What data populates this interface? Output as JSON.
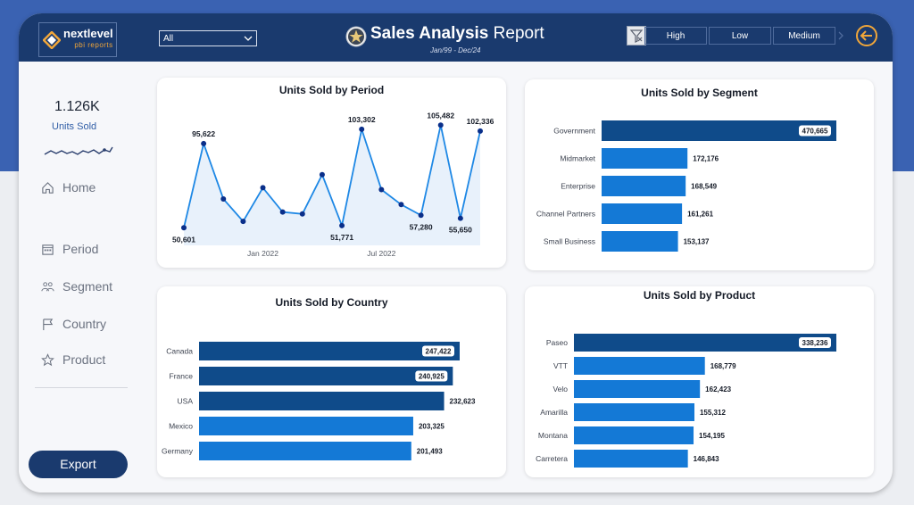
{
  "header": {
    "logo_line1": "nextlevel",
    "logo_line2": "pbi reports",
    "dropdown_value": "All",
    "title_bold": "Sales Analysis",
    "title_rest": " Report",
    "subtitle": "Jan/99 - Dec/24",
    "segments": [
      "High",
      "Low",
      "Medium"
    ]
  },
  "sidebar": {
    "kpi_value": "1.126K",
    "kpi_label": "Units Sold",
    "nav": [
      {
        "label": "Home",
        "icon": "home-icon"
      },
      {
        "label": "Period",
        "icon": "calendar-icon"
      },
      {
        "label": "Segment",
        "icon": "people-icon"
      },
      {
        "label": "Country",
        "icon": "flag-icon"
      },
      {
        "label": "Product",
        "icon": "star-outline-icon"
      }
    ],
    "export_label": "Export"
  },
  "colors": {
    "header": "#1a3a6e",
    "bar_dark": "#0f4b8a",
    "bar_light": "#1479d6",
    "line": "#1e88e5",
    "point": "#0a2f8a",
    "accent": "#f0a63a"
  },
  "chart_data": [
    {
      "type": "line",
      "title": "Units Sold by Period",
      "x": [
        "2021-09",
        "2021-10",
        "2021-11",
        "2021-12",
        "2022-01",
        "2022-02",
        "2022-03",
        "2022-04",
        "2022-05",
        "2022-06",
        "2022-07",
        "2022-08",
        "2022-09",
        "2022-10",
        "2022-11",
        "2022-12"
      ],
      "values": [
        50601,
        95622,
        66000,
        54000,
        72000,
        59000,
        58000,
        79000,
        51771,
        103302,
        71000,
        63000,
        57280,
        105482,
        55650,
        102336
      ],
      "labeled_points": {
        "2021-09": "50,601",
        "2021-10": "95,622",
        "2022-05": "51,771",
        "2022-06": "103,302",
        "2022-09": "57,280",
        "2022-10": "105,482",
        "2022-11": "55,650",
        "2022-12": "102,336"
      },
      "x_ticks": [
        "Jan 2022",
        "Jul 2022"
      ]
    },
    {
      "type": "bar",
      "title": "Units Sold by Segment",
      "categories": [
        "Government",
        "Midmarket",
        "Enterprise",
        "Channel Partners",
        "Small Business"
      ],
      "values": [
        470665,
        172176,
        168549,
        161261,
        153137
      ],
      "labels": [
        "470,665",
        "172,176",
        "168,549",
        "161,261",
        "153,137"
      ],
      "dark_count": 1
    },
    {
      "type": "bar",
      "title": "Units Sold by Country",
      "categories": [
        "Canada",
        "France",
        "USA",
        "Mexico",
        "Germany"
      ],
      "values": [
        247422,
        240925,
        232623,
        203325,
        201493
      ],
      "labels": [
        "247,422",
        "240,925",
        "232,623",
        "203,325",
        "201,493"
      ],
      "dark_count": 3
    },
    {
      "type": "bar",
      "title": "Units Sold by Product",
      "categories": [
        "Paseo",
        "VTT",
        "Velo",
        "Amarilla",
        "Montana",
        "Carretera"
      ],
      "values": [
        338236,
        168779,
        162423,
        155312,
        154195,
        146843
      ],
      "labels": [
        "338,236",
        "168,779",
        "162,423",
        "155,312",
        "154,195",
        "146,843"
      ],
      "dark_count": 1
    }
  ]
}
